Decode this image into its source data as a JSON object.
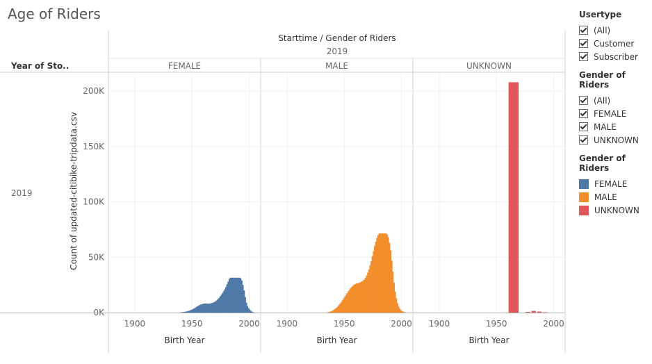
{
  "page": {
    "title": "Age of Riders"
  },
  "chart_data": {
    "type": "bar",
    "header": "Starttime / Gender of Riders",
    "year_header": "2019",
    "row_header": "Year of Sto..",
    "row_label": "2019",
    "xlabel": "Birth Year",
    "ylabel": "Count of updated-citibike-tripdata.csv",
    "xlim": [
      1877,
      2010
    ],
    "ylim": [
      0,
      212000
    ],
    "xticks": [
      1900,
      1950,
      2000
    ],
    "yticks": [
      0,
      50000,
      100000,
      150000,
      200000
    ],
    "ytick_labels": [
      "0K",
      "50K",
      "100K",
      "150K",
      "200K"
    ],
    "panels": [
      {
        "name": "FEMALE",
        "color": "#4e79a7",
        "x": [
          1940,
          1941,
          1942,
          1943,
          1944,
          1945,
          1946,
          1947,
          1948,
          1949,
          1950,
          1951,
          1952,
          1953,
          1954,
          1955,
          1956,
          1957,
          1958,
          1959,
          1960,
          1961,
          1962,
          1963,
          1964,
          1965,
          1966,
          1967,
          1968,
          1969,
          1970,
          1971,
          1972,
          1973,
          1974,
          1975,
          1976,
          1977,
          1978,
          1979,
          1980,
          1981,
          1982,
          1983,
          1984,
          1985,
          1986,
          1987,
          1988,
          1989,
          1990,
          1991,
          1992,
          1993,
          1994,
          1995,
          1996,
          1997,
          1998,
          1999,
          2000,
          2001,
          2002,
          2003
        ],
        "y": [
          300,
          400,
          500,
          700,
          900,
          1100,
          1400,
          1700,
          2100,
          2500,
          3000,
          3600,
          4200,
          4900,
          5600,
          6200,
          6800,
          7200,
          7600,
          7900,
          8100,
          8200,
          8200,
          8100,
          8100,
          8200,
          8400,
          8700,
          9100,
          9600,
          10200,
          11000,
          12000,
          13200,
          14600,
          16000,
          17500,
          19200,
          21000,
          23000,
          25500,
          28000,
          30500,
          31500,
          31500,
          31500,
          31500,
          31500,
          31500,
          31500,
          31500,
          31500,
          31000,
          29000,
          25000,
          20000,
          14000,
          9000,
          6000,
          4000,
          2500,
          1500,
          800,
          300
        ]
      },
      {
        "name": "MALE",
        "color": "#f28e2b",
        "x": [
          1935,
          1936,
          1937,
          1938,
          1939,
          1940,
          1941,
          1942,
          1943,
          1944,
          1945,
          1946,
          1947,
          1948,
          1949,
          1950,
          1951,
          1952,
          1953,
          1954,
          1955,
          1956,
          1957,
          1958,
          1959,
          1960,
          1961,
          1962,
          1963,
          1964,
          1965,
          1966,
          1967,
          1968,
          1969,
          1970,
          1971,
          1972,
          1973,
          1974,
          1975,
          1976,
          1977,
          1978,
          1979,
          1980,
          1981,
          1982,
          1983,
          1984,
          1985,
          1986,
          1987,
          1988,
          1989,
          1990,
          1991,
          1992,
          1993,
          1994,
          1995,
          1996,
          1997,
          1998,
          1999,
          2000,
          2001,
          2002,
          2003
        ],
        "y": [
          300,
          500,
          800,
          1200,
          1700,
          2300,
          3000,
          3800,
          4700,
          5800,
          7000,
          8300,
          9700,
          11200,
          12800,
          14400,
          16000,
          17600,
          19200,
          20700,
          22000,
          23200,
          24200,
          25000,
          25700,
          26200,
          26500,
          26700,
          27000,
          27500,
          28200,
          29000,
          30000,
          31500,
          33500,
          36000,
          39000,
          42500,
          46500,
          51000,
          55500,
          60000,
          64000,
          67500,
          70000,
          71500,
          71500,
          71500,
          71500,
          71500,
          71500,
          71500,
          70500,
          68000,
          63000,
          56000,
          47000,
          37000,
          27000,
          19000,
          13000,
          8500,
          5500,
          3500,
          2200,
          1300,
          800,
          400,
          200
        ]
      },
      {
        "name": "UNKNOWN",
        "color": "#e15759",
        "x": [
          1960,
          1975,
          1980,
          1985,
          1990
        ],
        "widths": [
          10,
          5,
          5,
          5,
          5
        ],
        "y": [
          208000,
          600,
          1500,
          900,
          300
        ]
      }
    ]
  },
  "legend": {
    "usertype_title": "Usertype",
    "usertype_items": [
      "(All)",
      "Customer",
      "Subscriber"
    ],
    "gender_filter_title": "Gender of Riders",
    "gender_filter_items": [
      "(All)",
      "FEMALE",
      "MALE",
      "UNKNOWN"
    ],
    "color_title": "Gender of Riders",
    "color_items": [
      {
        "label": "FEMALE",
        "color": "#4e79a7"
      },
      {
        "label": "MALE",
        "color": "#f28e2b"
      },
      {
        "label": "UNKNOWN",
        "color": "#e15759"
      }
    ]
  }
}
